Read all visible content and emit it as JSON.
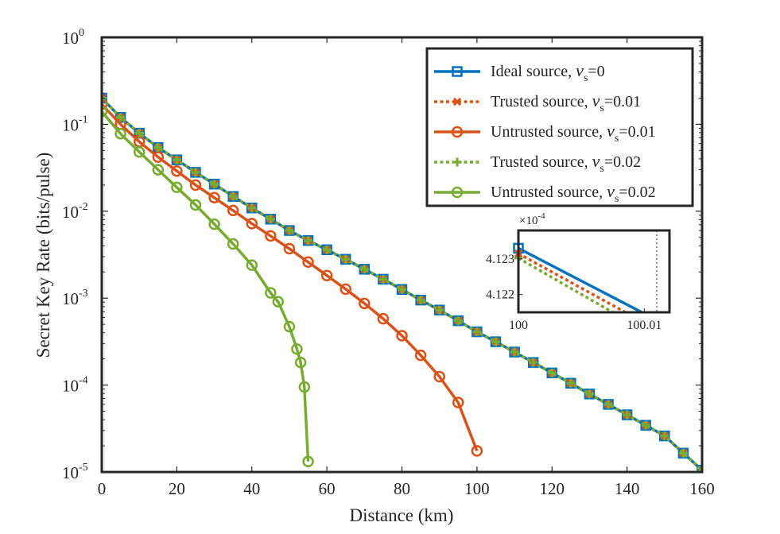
{
  "chart_data": {
    "type": "line",
    "title": "",
    "xlabel": "Distance (km)",
    "ylabel": "Secret Key Rate (bits/pulse)",
    "xlim": [
      0,
      160
    ],
    "ylim": [
      1e-05,
      1
    ],
    "yscale": "log",
    "xticks": [
      0,
      20,
      40,
      60,
      80,
      100,
      120,
      140,
      160
    ],
    "xtick_labels": [
      "0",
      "20",
      "40",
      "60",
      "80",
      "100",
      "120",
      "140",
      "160"
    ],
    "yticks": [
      {
        "value": 1,
        "base": "10",
        "exp": "0"
      },
      {
        "value": 0.1,
        "base": "10",
        "exp": "-1"
      },
      {
        "value": 0.01,
        "base": "10",
        "exp": "-2"
      },
      {
        "value": 0.001,
        "base": "10",
        "exp": "-3"
      },
      {
        "value": 0.0001,
        "base": "10",
        "exp": "-4"
      },
      {
        "value": 1e-05,
        "base": "10",
        "exp": "-5"
      }
    ],
    "legend_position": "top-right",
    "series": [
      {
        "name": "ideal",
        "legend_label": "Ideal source,",
        "nu_value": "=0",
        "color": "#0072BD",
        "line": "solid",
        "marker": "square",
        "x": [
          0,
          5,
          10,
          15,
          20,
          25,
          30,
          35,
          40,
          45,
          50,
          55,
          60,
          65,
          70,
          75,
          80,
          85,
          90,
          95,
          100,
          105,
          110,
          115,
          120,
          125,
          130,
          135,
          140,
          145,
          150,
          155,
          160
        ],
        "y": [
          0.2,
          0.12,
          0.079,
          0.054,
          0.039,
          0.028,
          0.0205,
          0.0148,
          0.0109,
          0.0081,
          0.006,
          0.0046,
          0.0036,
          0.0028,
          0.00215,
          0.00165,
          0.00126,
          0.00095,
          0.00073,
          0.00055,
          0.00041,
          0.000315,
          0.00024,
          0.000182,
          0.000138,
          0.000105,
          7.9e-05,
          6e-05,
          4.55e-05,
          3.45e-05,
          2.6e-05,
          1.65e-05,
          1.05e-05
        ]
      },
      {
        "name": "trusted-001",
        "legend_label": "Trusted source,",
        "nu_value": "=0.01",
        "color": "#D95319",
        "line": "dotted",
        "marker": "x",
        "x": [
          0,
          5,
          10,
          15,
          20,
          25,
          30,
          35,
          40,
          45,
          50,
          55,
          60,
          65,
          70,
          75,
          80,
          85,
          90,
          95,
          100,
          105,
          110,
          115,
          120,
          125,
          130,
          135,
          140,
          145,
          150,
          155,
          160
        ],
        "y": [
          0.2,
          0.12,
          0.079,
          0.054,
          0.039,
          0.028,
          0.0205,
          0.0148,
          0.0109,
          0.0081,
          0.006,
          0.0046,
          0.0036,
          0.0028,
          0.00215,
          0.00165,
          0.00126,
          0.00095,
          0.00073,
          0.00055,
          0.00041,
          0.000315,
          0.00024,
          0.000182,
          0.000138,
          0.000105,
          7.9e-05,
          6e-05,
          4.55e-05,
          3.45e-05,
          2.6e-05,
          1.65e-05,
          1.05e-05
        ]
      },
      {
        "name": "untrusted-001",
        "legend_label": "Untrusted source,",
        "nu_value": "=0.01",
        "color": "#D95319",
        "line": "solid",
        "marker": "circle",
        "x": [
          0,
          5,
          10,
          15,
          20,
          25,
          30,
          35,
          40,
          45,
          50,
          55,
          60,
          65,
          70,
          75,
          80,
          85,
          90,
          95,
          100
        ],
        "y": [
          0.17,
          0.1,
          0.063,
          0.042,
          0.029,
          0.02,
          0.0143,
          0.0102,
          0.0072,
          0.0052,
          0.0037,
          0.0026,
          0.00182,
          0.00127,
          0.00087,
          0.00058,
          0.00037,
          0.00022,
          0.000125,
          6.3e-05,
          1.75e-05
        ]
      },
      {
        "name": "trusted-002",
        "legend_label": "Trusted source,",
        "nu_value": "=0.02",
        "color": "#77AC30",
        "line": "dotted",
        "marker": "plus",
        "x": [
          0,
          5,
          10,
          15,
          20,
          25,
          30,
          35,
          40,
          45,
          50,
          55,
          60,
          65,
          70,
          75,
          80,
          85,
          90,
          95,
          100,
          105,
          110,
          115,
          120,
          125,
          130,
          135,
          140,
          145,
          150,
          155,
          160
        ],
        "y": [
          0.2,
          0.12,
          0.079,
          0.054,
          0.039,
          0.028,
          0.0205,
          0.0148,
          0.0109,
          0.0081,
          0.006,
          0.0046,
          0.0036,
          0.0028,
          0.00215,
          0.00165,
          0.00126,
          0.00095,
          0.00073,
          0.00055,
          0.00041,
          0.000315,
          0.00024,
          0.000182,
          0.000138,
          0.000105,
          7.9e-05,
          6e-05,
          4.55e-05,
          3.45e-05,
          2.6e-05,
          1.65e-05,
          1.05e-05
        ]
      },
      {
        "name": "untrusted-002",
        "legend_label": "Untrusted source,",
        "nu_value": "=0.02",
        "color": "#77AC30",
        "line": "solid",
        "marker": "circle",
        "x": [
          0,
          5,
          10,
          15,
          20,
          25,
          30,
          35,
          40,
          45,
          47,
          50,
          52,
          53,
          54,
          55
        ],
        "y": [
          0.14,
          0.078,
          0.048,
          0.03,
          0.0188,
          0.0118,
          0.0071,
          0.0042,
          0.0024,
          0.00115,
          0.00091,
          0.00047,
          0.00026,
          0.000182,
          9.5e-05,
          1.32e-05
        ]
      }
    ],
    "inset": {
      "xlim": [
        100,
        100.012
      ],
      "ylim": [
        4.1215,
        4.1238
      ],
      "multiplier_base": "×10",
      "multiplier_exp": "-4",
      "xtick_labels": [
        "100",
        "100.01"
      ],
      "xticks": [
        100,
        100.01
      ],
      "yticks": [
        4.122,
        4.123
      ],
      "ytick_labels": [
        "4.122",
        "4.123"
      ],
      "series": [
        {
          "ref": "ideal",
          "x": [
            100,
            100.0098
          ],
          "y": [
            4.1233,
            4.1215
          ]
        },
        {
          "ref": "trusted-001",
          "x": [
            100,
            100.0085
          ],
          "y": [
            4.12315,
            4.1215
          ]
        },
        {
          "ref": "trusted-002",
          "x": [
            100,
            100.0075
          ],
          "y": [
            4.12302,
            4.1215
          ]
        }
      ]
    }
  },
  "legend": {
    "nu_symbol": "ν",
    "nu_subscript": "s"
  }
}
